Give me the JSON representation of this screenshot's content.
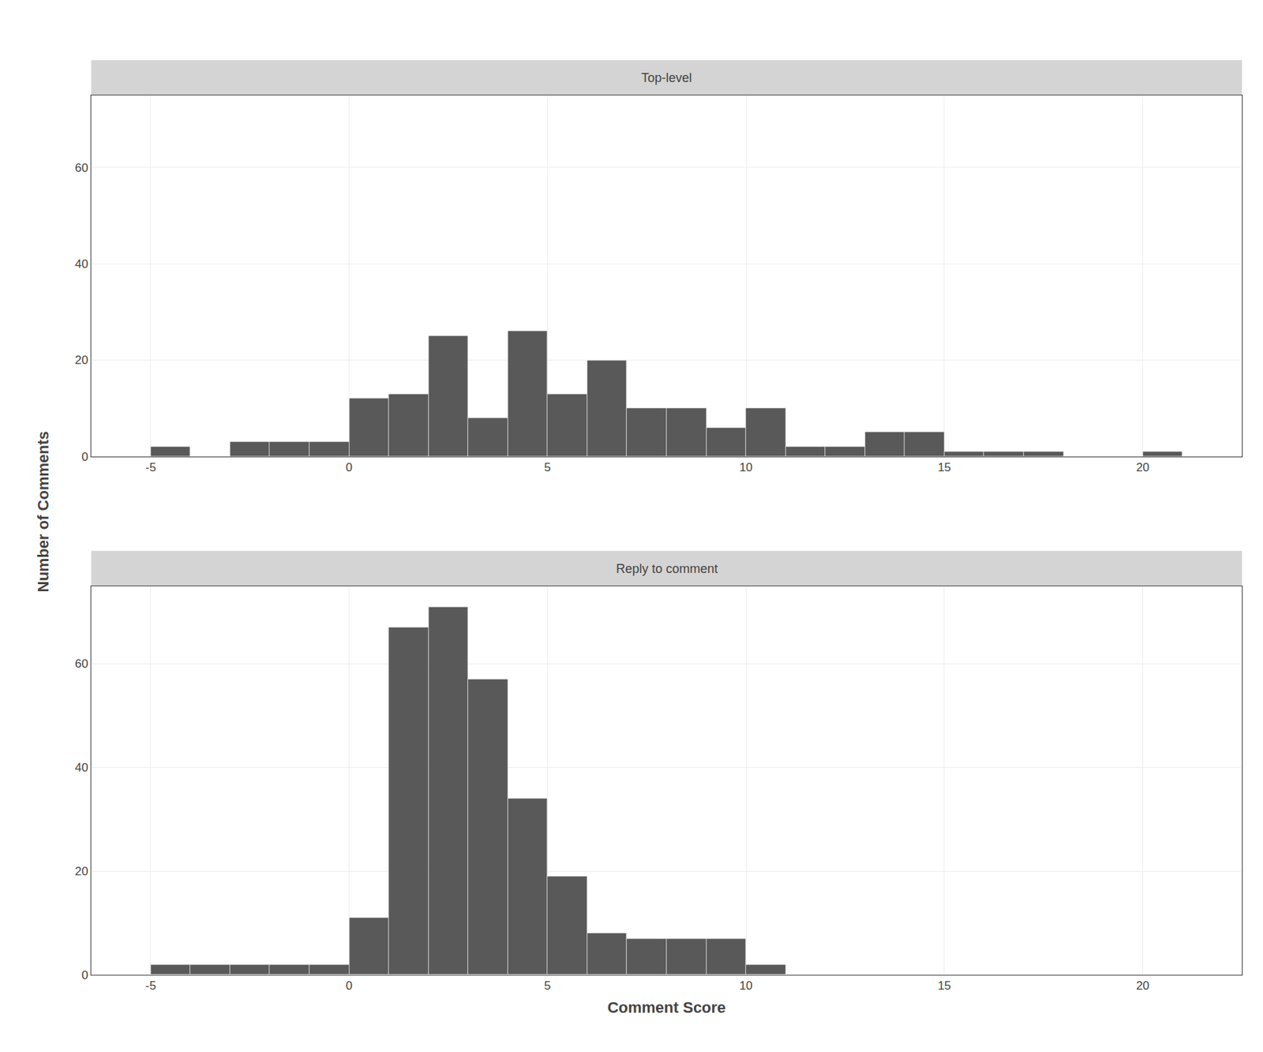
{
  "chart_data": [
    {
      "type": "histogram",
      "title": "Top-level",
      "ylabel": "Number of Comments",
      "bins": [
        -5,
        -4,
        -3,
        -2,
        -1,
        0,
        1,
        2,
        3,
        4,
        5,
        6,
        7,
        8,
        9,
        10,
        11,
        12,
        13,
        14,
        15,
        16,
        17,
        18,
        19,
        20,
        21
      ],
      "values": [
        2,
        0,
        3,
        3,
        3,
        12,
        13,
        25,
        8,
        26,
        13,
        20,
        10,
        10,
        6,
        10,
        2,
        2,
        5,
        5,
        1,
        1,
        1,
        0,
        0,
        1
      ],
      "color": "#595959",
      "xlim": [
        -6.5,
        22.5
      ],
      "xticks": [
        -5,
        0,
        5,
        10,
        15,
        20
      ],
      "ylim": [
        0,
        75
      ],
      "yticks": [
        0,
        20,
        40,
        60
      ],
      "grid": true
    },
    {
      "type": "histogram",
      "title": "Reply to comment",
      "xlabel": "Comment Score",
      "bins": [
        -5,
        -4,
        -3,
        -2,
        -1,
        0,
        1,
        2,
        3,
        4,
        5,
        6,
        7,
        8,
        9,
        10,
        11
      ],
      "values": [
        2,
        2,
        2,
        2,
        2,
        11,
        67,
        71,
        57,
        34,
        19,
        8,
        7,
        7,
        7,
        2
      ],
      "color": "#595959",
      "xlim": [
        -6.5,
        22.5
      ],
      "xticks": [
        -5,
        0,
        5,
        10,
        15,
        20
      ],
      "ylim": [
        0,
        75
      ],
      "yticks": [
        0,
        20,
        40,
        60
      ],
      "grid": true
    }
  ]
}
